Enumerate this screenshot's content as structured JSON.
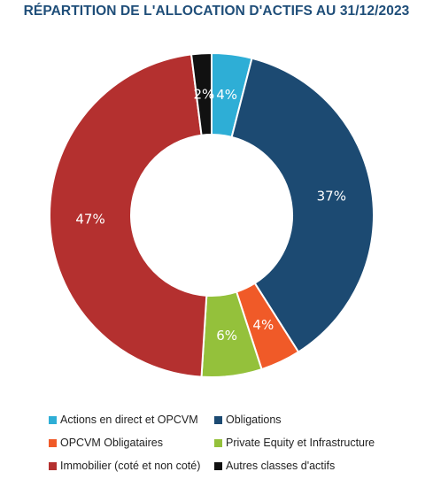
{
  "chart_data": {
    "type": "pie",
    "donut": true,
    "title": "RÉPARTITION DE L'ALLOCATION D'ACTIFS AU 31/12/2023",
    "slices": [
      {
        "name": "Actions en direct et OPCVM",
        "value": 4,
        "label": "4%",
        "color": "#2eaed6"
      },
      {
        "name": "Obligations",
        "value": 37,
        "label": "37%",
        "color": "#1c4a72"
      },
      {
        "name": "OPCVM Obligataires",
        "value": 4,
        "label": "4%",
        "color": "#f05a28"
      },
      {
        "name": "Private Equity et Infrastructure",
        "value": 6,
        "label": "6%",
        "color": "#94c13b"
      },
      {
        "name": "Immobilier (coté et non coté)",
        "value": 47,
        "label": "47%",
        "color": "#b4302f"
      },
      {
        "name": "Autres classes d'actifs",
        "value": 2,
        "label": "2%",
        "color": "#111111"
      }
    ],
    "legend": {
      "placement": "bottom",
      "columns": 2
    }
  }
}
